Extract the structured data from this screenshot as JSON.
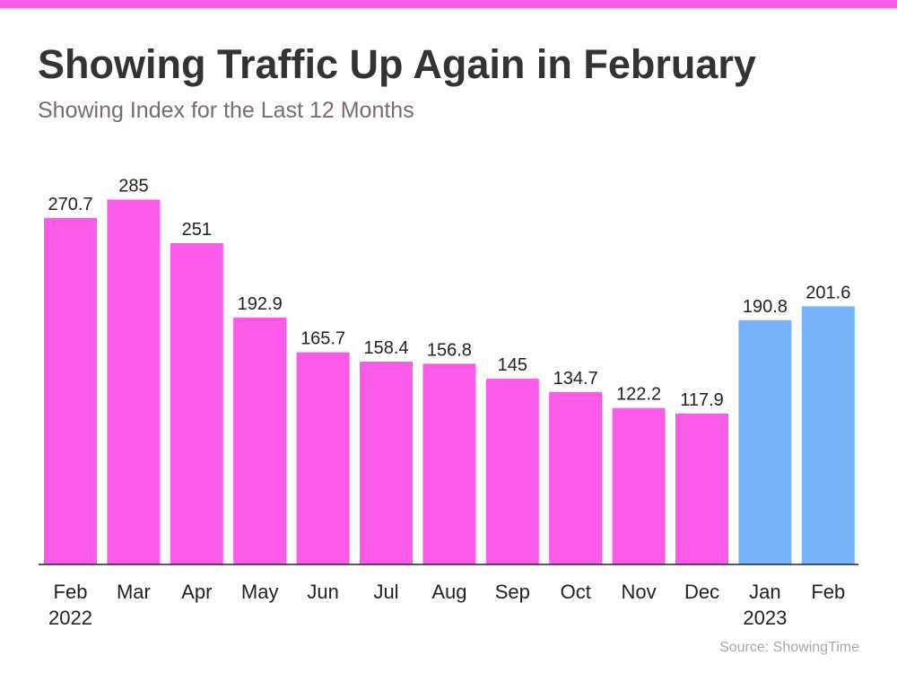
{
  "colors": {
    "accent_bar": "#fc5ae9",
    "bar_2022": "#fc5ae9",
    "bar_2023": "#76b3fb",
    "title": "#333333",
    "subtitle": "#7b6a76",
    "source": "#a9a9a9",
    "axis": "#222222"
  },
  "header": {
    "title": "Showing Traffic Up Again in February",
    "subtitle": "Showing Index for the Last 12 Months"
  },
  "footer": {
    "source": "Source: ShowingTime"
  },
  "chart_data": {
    "type": "bar",
    "title": "Showing Traffic Up Again in February",
    "subtitle": "Showing Index for the Last 12 Months",
    "xlabel": "",
    "ylabel": "",
    "ylim": [
      0,
      300
    ],
    "grid": false,
    "legend": "none",
    "categories": [
      {
        "month": "Feb",
        "year": "2022"
      },
      {
        "month": "Mar",
        "year": ""
      },
      {
        "month": "Apr",
        "year": ""
      },
      {
        "month": "May",
        "year": ""
      },
      {
        "month": "Jun",
        "year": ""
      },
      {
        "month": "Jul",
        "year": ""
      },
      {
        "month": "Aug",
        "year": ""
      },
      {
        "month": "Sep",
        "year": ""
      },
      {
        "month": "Oct",
        "year": ""
      },
      {
        "month": "Nov",
        "year": ""
      },
      {
        "month": "Dec",
        "year": ""
      },
      {
        "month": "Jan",
        "year": "2023"
      },
      {
        "month": "Feb",
        "year": ""
      }
    ],
    "values": [
      270.7,
      285,
      251,
      192.9,
      165.7,
      158.4,
      156.8,
      145,
      134.7,
      122.2,
      117.9,
      190.8,
      201.6
    ],
    "value_labels": [
      "270.7",
      "285",
      "251",
      "192.9",
      "165.7",
      "158.4",
      "156.8",
      "145",
      "134.7",
      "122.2",
      "117.9",
      "190.8",
      "201.6"
    ],
    "bar_colors": [
      "#fc5ae9",
      "#fc5ae9",
      "#fc5ae9",
      "#fc5ae9",
      "#fc5ae9",
      "#fc5ae9",
      "#fc5ae9",
      "#fc5ae9",
      "#fc5ae9",
      "#fc5ae9",
      "#fc5ae9",
      "#76b3fb",
      "#76b3fb"
    ]
  }
}
